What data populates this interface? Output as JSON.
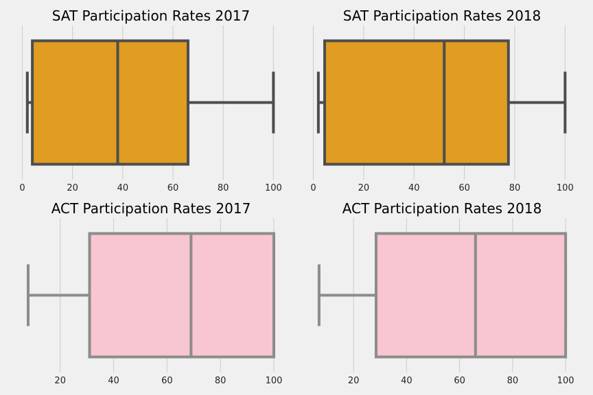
{
  "chart_data": [
    {
      "type": "box",
      "title": "SAT Participation Rates 2017",
      "xlim": [
        -1.5,
        104
      ],
      "xticks": [
        0,
        20,
        40,
        60,
        80,
        100
      ],
      "tick_labels": [
        "0",
        "20",
        "40",
        "60",
        "80",
        "100"
      ],
      "grid": true,
      "stats": {
        "min": 2,
        "q1": 4,
        "median": 38,
        "q3": 66,
        "max": 100
      },
      "color": "#e09d21",
      "line_color": "#4d4d4d"
    },
    {
      "type": "box",
      "title": "SAT Participation Rates 2018",
      "xlim": [
        -1.5,
        104
      ],
      "xticks": [
        0,
        20,
        40,
        60,
        80,
        100
      ],
      "tick_labels": [
        "0",
        "20",
        "40",
        "60",
        "80",
        "100"
      ],
      "grid": true,
      "stats": {
        "min": 2,
        "q1": 4.5,
        "median": 52,
        "q3": 77.5,
        "max": 100
      },
      "color": "#e09d21",
      "line_color": "#4d4d4d"
    },
    {
      "type": "box",
      "title": "ACT Participation Rates 2017",
      "xlim": [
        4.4,
        103.6
      ],
      "xticks": [
        20,
        40,
        60,
        80,
        100
      ],
      "tick_labels": [
        "20",
        "40",
        "60",
        "80",
        "100"
      ],
      "grid": true,
      "stats": {
        "min": 8,
        "q1": 31,
        "median": 69,
        "q3": 100,
        "max": 100
      },
      "color": "#f7c6d0",
      "line_color": "#8c8c8c"
    },
    {
      "type": "box",
      "title": "ACT Participation Rates 2018",
      "xlim": [
        3.4,
        103.6
      ],
      "xticks": [
        20,
        40,
        60,
        80,
        100
      ],
      "tick_labels": [
        "20",
        "40",
        "60",
        "80",
        "100"
      ],
      "grid": true,
      "stats": {
        "min": 7,
        "q1": 28.5,
        "median": 66,
        "q3": 100,
        "max": 100
      },
      "color": "#f7c6d0",
      "line_color": "#8c8c8c"
    }
  ]
}
